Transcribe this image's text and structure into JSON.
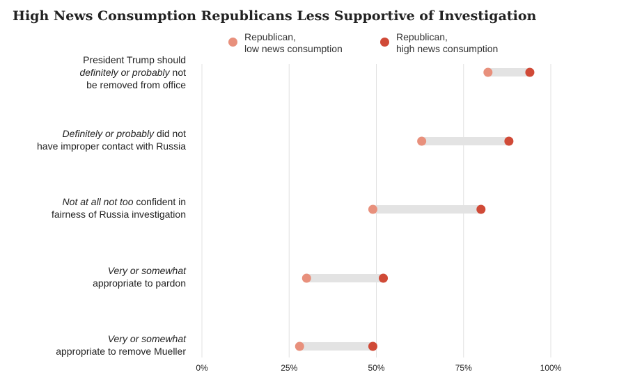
{
  "title": "High News Consumption Republicans Less Supportive of Investigation",
  "colors": {
    "low": "#E8907C",
    "high": "#D04A37",
    "bar": "#E3E3E3",
    "grid": "#E0E0E0"
  },
  "chart_data": {
    "type": "dumbbell",
    "title": "High News Consumption Republicans Less Supportive of Investigation",
    "xlim": [
      0,
      100
    ],
    "x_ticks": [
      "0%",
      "25%",
      "50%",
      "75%",
      "100%"
    ],
    "x_tick_values": [
      0,
      25,
      50,
      75,
      100
    ],
    "grid": true,
    "legend_position": "top",
    "series": [
      {
        "name_lines": [
          "Republican,",
          "low news consumption"
        ],
        "key": "low"
      },
      {
        "name_lines": [
          "Republican,",
          "high news consumption"
        ],
        "key": "high"
      }
    ],
    "categories": [
      {
        "label_lines": [
          [
            {
              "t": "President Trump should",
              "i": false
            }
          ],
          [
            {
              "t": "definitely or probably",
              "i": true
            },
            {
              "t": " not",
              "i": false
            }
          ],
          [
            {
              "t": "be removed from office",
              "i": false
            }
          ]
        ],
        "low": 82,
        "high": 94
      },
      {
        "label_lines": [
          [
            {
              "t": "Definitely or probably",
              "i": true
            },
            {
              "t": " did not",
              "i": false
            }
          ],
          [
            {
              "t": "have improper contact with Russia",
              "i": false
            }
          ]
        ],
        "low": 63,
        "high": 88
      },
      {
        "label_lines": [
          [
            {
              "t": "Not at all not too",
              "i": true
            },
            {
              "t": " confident in",
              "i": false
            }
          ],
          [
            {
              "t": "fairness of Russia investigation",
              "i": false
            }
          ]
        ],
        "low": 49,
        "high": 80
      },
      {
        "label_lines": [
          [
            {
              "t": "Very or somewhat",
              "i": true
            }
          ],
          [
            {
              "t": "appropriate to pardon",
              "i": false
            }
          ]
        ],
        "low": 30,
        "high": 52
      },
      {
        "label_lines": [
          [
            {
              "t": "Very or somewhat",
              "i": true
            }
          ],
          [
            {
              "t": "appropriate to remove Mueller",
              "i": false
            }
          ]
        ],
        "low": 28,
        "high": 49
      }
    ]
  }
}
